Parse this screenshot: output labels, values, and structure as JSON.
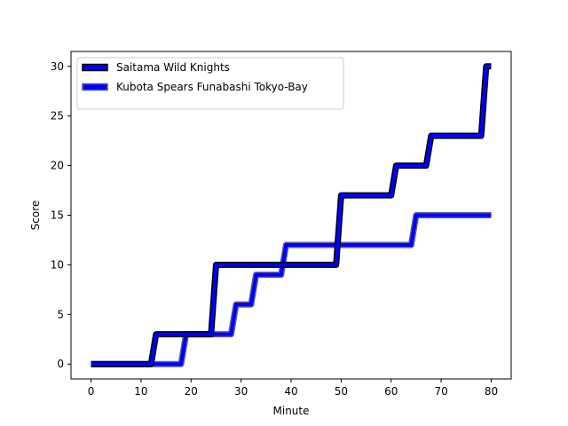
{
  "chart_data": {
    "type": "line",
    "title": "",
    "xlabel": "Minute",
    "ylabel": "Score",
    "xlim": [
      -4.0,
      84.0
    ],
    "ylim": [
      -1.5,
      31.5
    ],
    "xticks": [
      0,
      10,
      20,
      30,
      40,
      50,
      60,
      70,
      80
    ],
    "yticks": [
      0,
      5,
      10,
      15,
      20,
      25,
      30
    ],
    "legend_position": "upper-left",
    "series": [
      {
        "name": "Saitama Wild Knights",
        "color": "#0000ff",
        "edge_color": "#000000",
        "points": [
          [
            0,
            0
          ],
          [
            12,
            0
          ],
          [
            13,
            3
          ],
          [
            24,
            3
          ],
          [
            25,
            10
          ],
          [
            49,
            10
          ],
          [
            50,
            17
          ],
          [
            60,
            17
          ],
          [
            61,
            20
          ],
          [
            67,
            20
          ],
          [
            68,
            23
          ],
          [
            78,
            23
          ],
          [
            79,
            30
          ],
          [
            80,
            30
          ]
        ]
      },
      {
        "name": "Kubota Spears Funabashi Tokyo-Bay",
        "color": "#0000ff",
        "edge_color": "#5a5a9a",
        "points": [
          [
            0,
            0
          ],
          [
            18,
            0
          ],
          [
            19,
            3
          ],
          [
            28,
            3
          ],
          [
            29,
            6
          ],
          [
            32,
            6
          ],
          [
            33,
            9
          ],
          [
            38,
            9
          ],
          [
            39,
            12
          ],
          [
            64,
            12
          ],
          [
            65,
            15
          ],
          [
            80,
            15
          ]
        ]
      }
    ]
  }
}
